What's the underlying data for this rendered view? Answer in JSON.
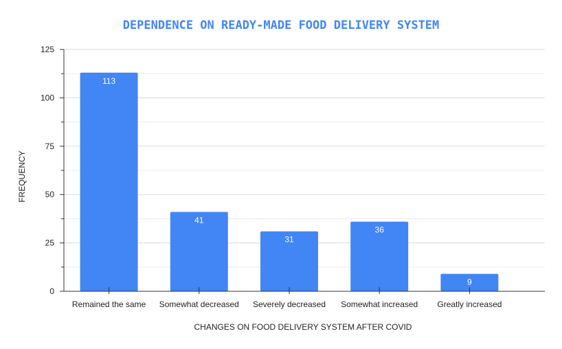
{
  "chart_data": {
    "type": "bar",
    "title": "DEPENDENCE ON READY-MADE FOOD DELIVERY SYSTEM",
    "xlabel": "CHANGES ON FOOD DELIVERY SYSTEM AFTER COVID",
    "ylabel": "FREQUENCY",
    "categories": [
      "Remained the same",
      "Somewhat decreased",
      "Severely decreased",
      "Somewhat increased",
      "Greatly increased"
    ],
    "values": [
      113,
      41,
      31,
      36,
      9
    ],
    "data_labels": [
      "113",
      "41",
      "31",
      "36",
      "9"
    ],
    "ylim": [
      0,
      125
    ],
    "yticks": [
      0,
      25,
      50,
      75,
      100,
      125
    ],
    "ytick_labels": [
      "0",
      "25",
      "50",
      "75",
      "100",
      "125"
    ],
    "grid": true,
    "legend": "none",
    "colors": {
      "bar": "#4285f4",
      "title": "#4285f4"
    }
  }
}
